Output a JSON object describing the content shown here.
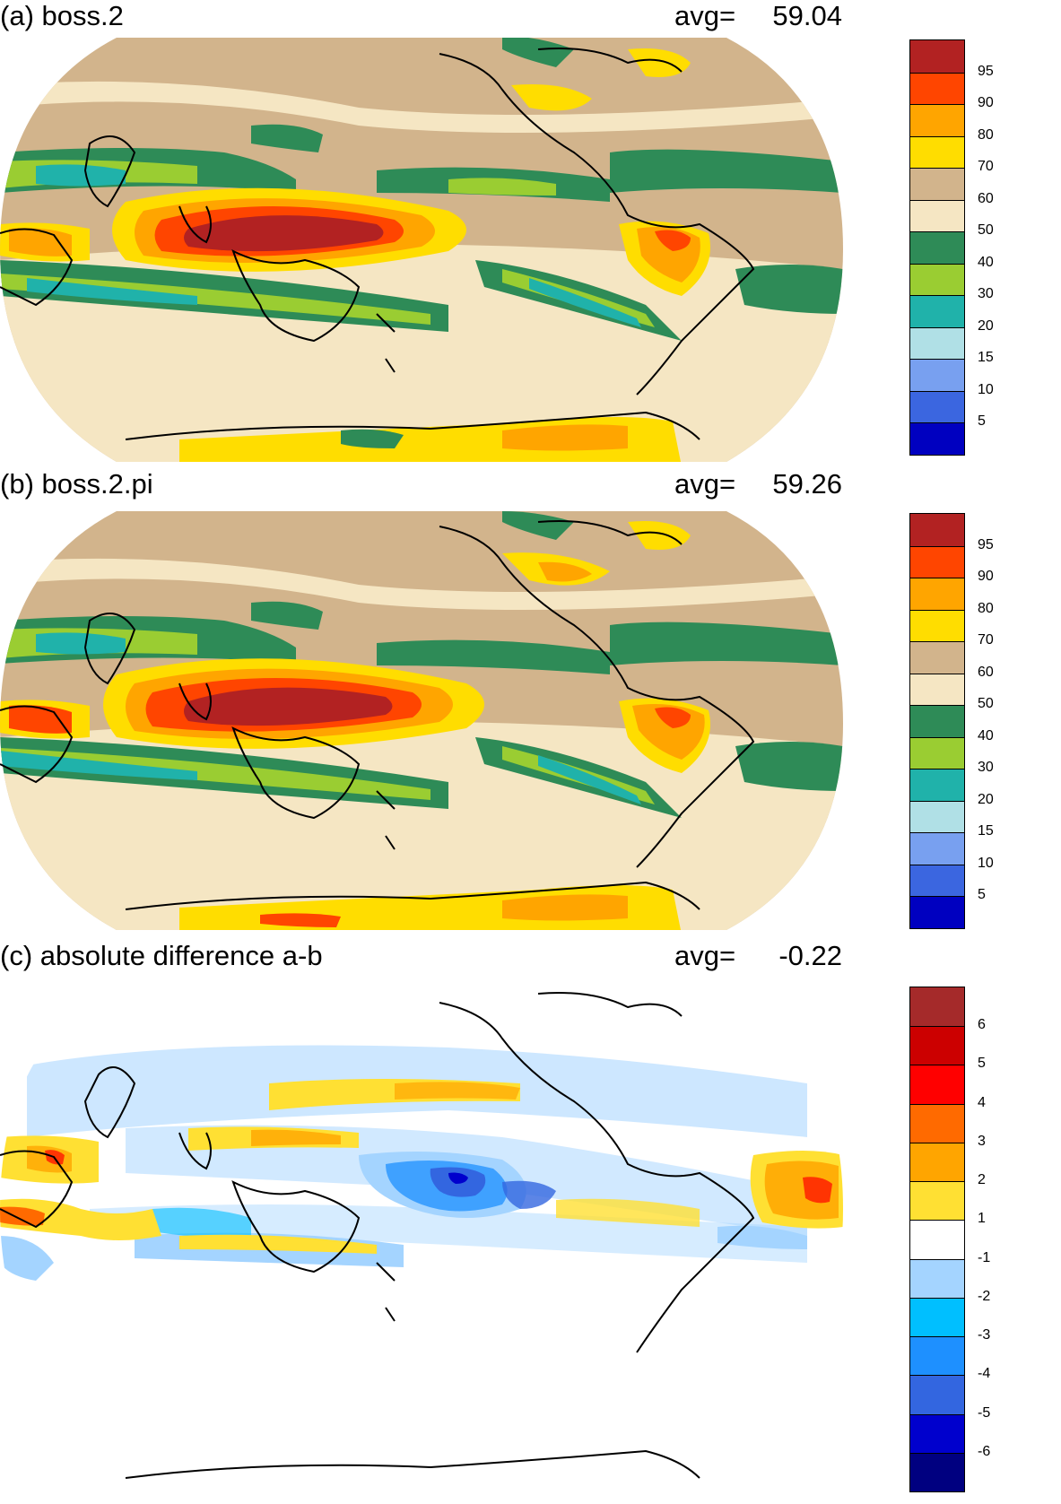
{
  "panels": [
    {
      "id": "a",
      "title": "(a) boss.2",
      "avg_label": "avg=",
      "avg_value": "59.04",
      "colorbar": {
        "colors": [
          "#0000c0",
          "#3b66e0",
          "#78a0f0",
          "#b0e0e6",
          "#20b2aa",
          "#9acd32",
          "#2e8b57",
          "#f5e6c3",
          "#d2b48c",
          "#ffdd00",
          "#ffa500",
          "#ff4500",
          "#b22222"
        ],
        "ticks": [
          "5",
          "10",
          "15",
          "20",
          "30",
          "40",
          "50",
          "60",
          "70",
          "80",
          "90",
          "95"
        ]
      }
    },
    {
      "id": "b",
      "title": "(b) boss.2.pi",
      "avg_label": "avg=",
      "avg_value": "59.26",
      "colorbar": {
        "colors": [
          "#0000c0",
          "#3b66e0",
          "#78a0f0",
          "#b0e0e6",
          "#20b2aa",
          "#9acd32",
          "#2e8b57",
          "#f5e6c3",
          "#d2b48c",
          "#ffdd00",
          "#ffa500",
          "#ff4500",
          "#b22222"
        ],
        "ticks": [
          "5",
          "10",
          "15",
          "20",
          "30",
          "40",
          "50",
          "60",
          "70",
          "80",
          "90",
          "95"
        ]
      }
    },
    {
      "id": "c",
      "title": "(c) absolute difference a-b",
      "avg_label": "avg=",
      "avg_value": "-0.22",
      "colorbar": {
        "colors": [
          "#000080",
          "#0000cd",
          "#3366e0",
          "#1e90ff",
          "#00bfff",
          "#a4d4ff",
          "#ffffff",
          "#ffe033",
          "#ffa500",
          "#ff6a00",
          "#ff0000",
          "#cc0000",
          "#a52a2a"
        ],
        "ticks": [
          "-6",
          "-5",
          "-4",
          "-3",
          "-2",
          "-1",
          "1",
          "2",
          "3",
          "4",
          "5",
          "6"
        ]
      }
    }
  ]
}
